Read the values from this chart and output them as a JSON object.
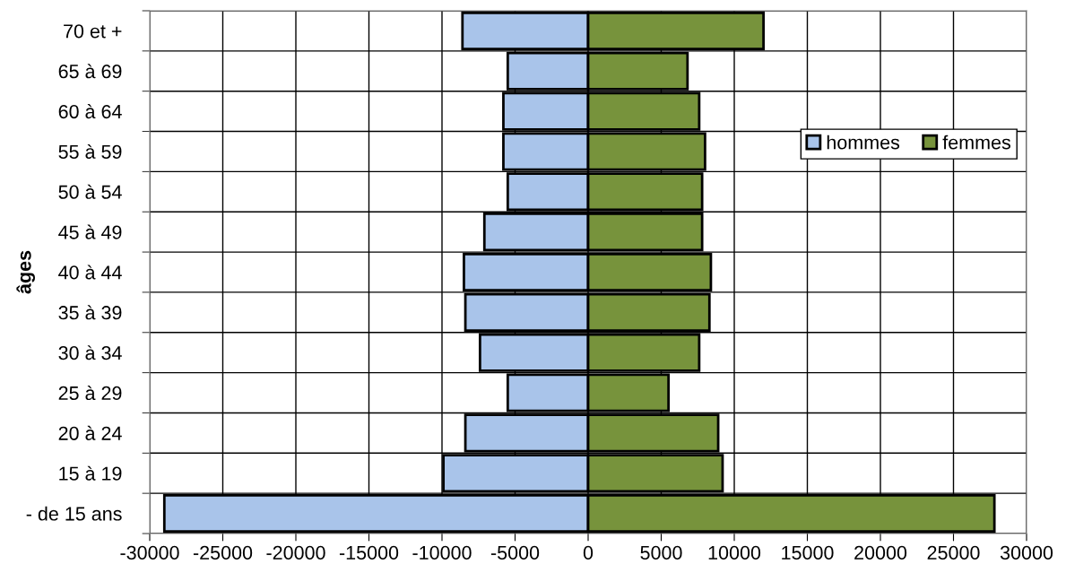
{
  "chart_data": {
    "type": "bar",
    "orientation": "horizontal",
    "ylabel": "âges",
    "categories": [
      "70 et +",
      "65 à 69",
      "60 à 64",
      "55 à 59",
      "50 à 54",
      "45 à 49",
      "40 à 44",
      "35 à 39",
      "30 à 34",
      "25 à 29",
      "20 à 24",
      "15 à 19",
      "- de 15 ans"
    ],
    "series": [
      {
        "name": "hommes",
        "color": "#a9c4ea",
        "values": [
          -8600,
          -5500,
          -5800,
          -5800,
          -5500,
          -7100,
          -8500,
          -8400,
          -7400,
          -5500,
          -8400,
          -9900,
          -29000
        ]
      },
      {
        "name": "femmes",
        "color": "#77933c",
        "values": [
          12000,
          6800,
          7600,
          8000,
          7800,
          7800,
          8400,
          8300,
          7600,
          5500,
          8900,
          9200,
          27800
        ]
      }
    ],
    "xlim": [
      -30000,
      30000
    ],
    "xticks": [
      -30000,
      -25000,
      -20000,
      -15000,
      -10000,
      -5000,
      0,
      5000,
      10000,
      15000,
      20000,
      25000,
      30000
    ],
    "grid": true,
    "legend": "right",
    "stacked": true
  }
}
